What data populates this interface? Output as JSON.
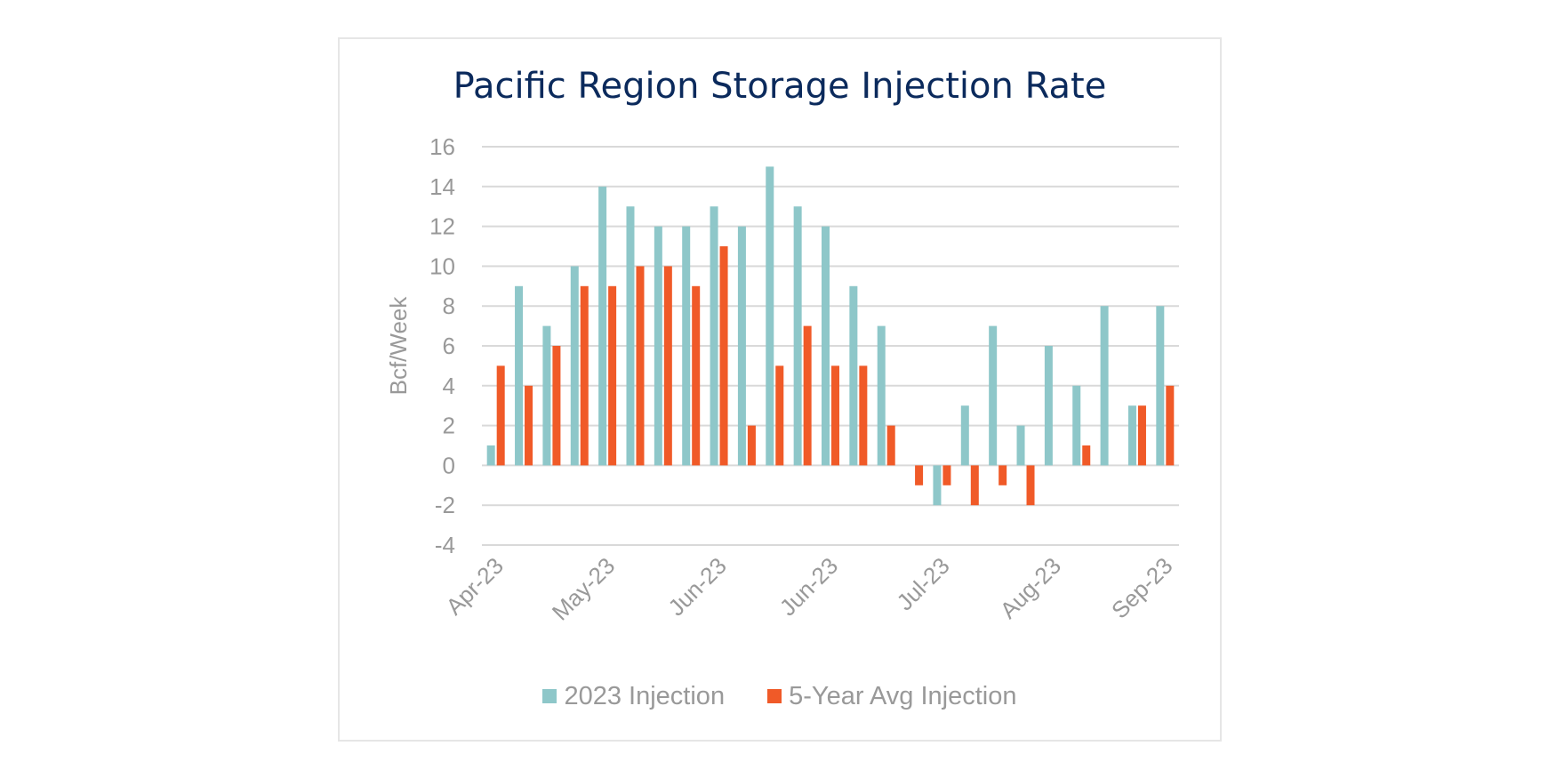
{
  "chart_data": {
    "type": "bar",
    "title": "Pacific Region Storage Injection Rate",
    "ylabel": "Bcf/Week",
    "ylim": [
      -4,
      16
    ],
    "yticks": [
      16,
      14,
      12,
      10,
      8,
      6,
      4,
      2,
      0,
      -2,
      -4
    ],
    "grid": true,
    "legend_position": "bottom",
    "x_tick_labels": [
      {
        "index": 0,
        "label": "Apr-23"
      },
      {
        "index": 4,
        "label": "May-23"
      },
      {
        "index": 8,
        "label": "Jun-23"
      },
      {
        "index": 12,
        "label": "Jun-23"
      },
      {
        "index": 16,
        "label": "Jul-23"
      },
      {
        "index": 20,
        "label": "Aug-23"
      },
      {
        "index": 24,
        "label": "Sep-23"
      }
    ],
    "series": [
      {
        "name": "2023 Injection",
        "color": "#8ec7c9",
        "values": [
          1,
          9,
          7,
          10,
          14,
          13,
          12,
          12,
          13,
          12,
          15,
          13,
          12,
          9,
          7,
          0,
          -2,
          3,
          7,
          2,
          6,
          4,
          8,
          3,
          8
        ]
      },
      {
        "name": "5-Year Avg Injection",
        "color": "#f05a28",
        "values": [
          5,
          4,
          6,
          9,
          9,
          10,
          10,
          9,
          11,
          2,
          5,
          7,
          5,
          5,
          2,
          -1,
          -1,
          -2,
          -1,
          -2,
          0,
          1,
          0,
          3,
          4
        ]
      }
    ]
  }
}
